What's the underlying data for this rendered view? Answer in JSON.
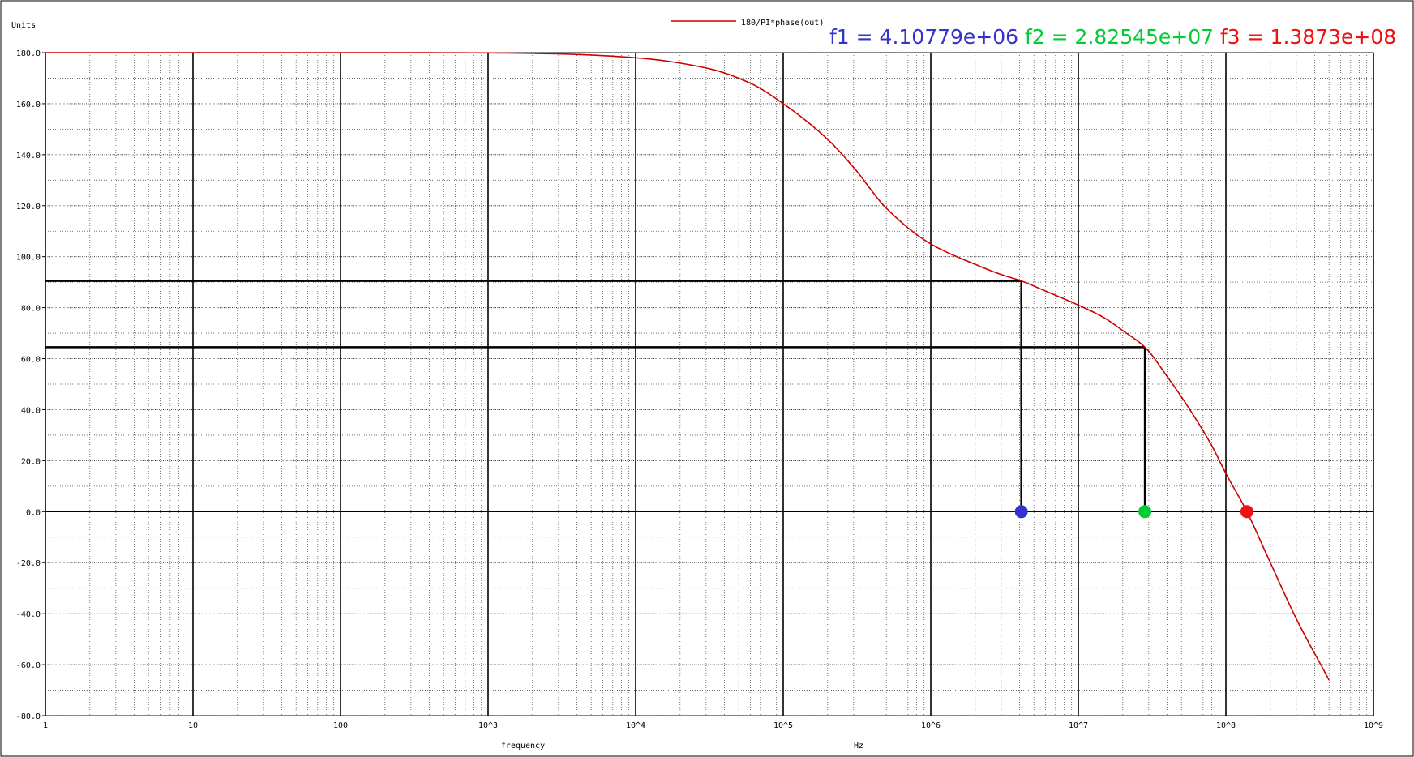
{
  "chart_data": {
    "type": "line",
    "title": "",
    "xscale": "log",
    "xlim": [
      1,
      1000000000
    ],
    "ylim": [
      -80,
      180
    ],
    "xlabel_left": "frequency",
    "xlabel_right": "Hz",
    "ylabel": "Units",
    "grid": true,
    "x_ticks": [
      {
        "value": 1,
        "label": "1"
      },
      {
        "value": 10,
        "label": "10"
      },
      {
        "value": 100,
        "label": "100"
      },
      {
        "value": 1000,
        "label": "10^3"
      },
      {
        "value": 10000,
        "label": "10^4"
      },
      {
        "value": 100000,
        "label": "10^5"
      },
      {
        "value": 1000000,
        "label": "10^6"
      },
      {
        "value": 10000000,
        "label": "10^7"
      },
      {
        "value": 100000000,
        "label": "10^8"
      },
      {
        "value": 1000000000,
        "label": "10^9"
      }
    ],
    "y_ticks": [
      {
        "value": 180,
        "label": "180.0"
      },
      {
        "value": 160,
        "label": "160.0"
      },
      {
        "value": 140,
        "label": "140.0"
      },
      {
        "value": 120,
        "label": "120.0"
      },
      {
        "value": 100,
        "label": "100.0"
      },
      {
        "value": 80,
        "label": "80.0"
      },
      {
        "value": 60,
        "label": "60.0"
      },
      {
        "value": 40,
        "label": "40.0"
      },
      {
        "value": 20,
        "label": "20.0"
      },
      {
        "value": 0,
        "label": "0.0"
      },
      {
        "value": -20,
        "label": "-20.0"
      },
      {
        "value": -40,
        "label": "-40.0"
      },
      {
        "value": -60,
        "label": "-60.0"
      },
      {
        "value": -80,
        "label": "-80.0"
      }
    ],
    "legend": {
      "placement": "top-center",
      "label": "180/PI*phase(out)",
      "color": "#cc0000"
    },
    "series": [
      {
        "name": "180/PI*phase(out)",
        "color": "#cc0000",
        "x": [
          1,
          10,
          100,
          1000,
          3000,
          10000,
          30000,
          60000,
          100000,
          200000,
          300000,
          500000,
          1000000,
          2000000,
          3000000,
          4107790,
          6000000,
          10000000,
          15000000,
          20000000,
          28254500,
          40000000,
          60000000,
          80000000,
          100000000,
          138730000,
          200000000,
          300000000,
          500000000
        ],
        "y": [
          180,
          180,
          180,
          179.9,
          179.5,
          178,
          174,
          168,
          160,
          146,
          135,
          119,
          105,
          97,
          93,
          90.5,
          86.5,
          81,
          76,
          71,
          64.5,
          53,
          38,
          26,
          15,
          0,
          -20,
          -42,
          -66
        ]
      }
    ],
    "markers": [
      {
        "name": "f1",
        "label": "f1 = 4.10779e+06",
        "x": 4107790,
        "y": 90.5,
        "color": "#3333cc"
      },
      {
        "name": "f2",
        "label": "f2 = 2.82545e+07",
        "x": 28254500,
        "y": 64.5,
        "color": "#00cc33"
      },
      {
        "name": "f3",
        "label": "f3 = 1.3873e+08",
        "x": 138730000,
        "y": 0,
        "color": "#ee1111"
      }
    ]
  }
}
